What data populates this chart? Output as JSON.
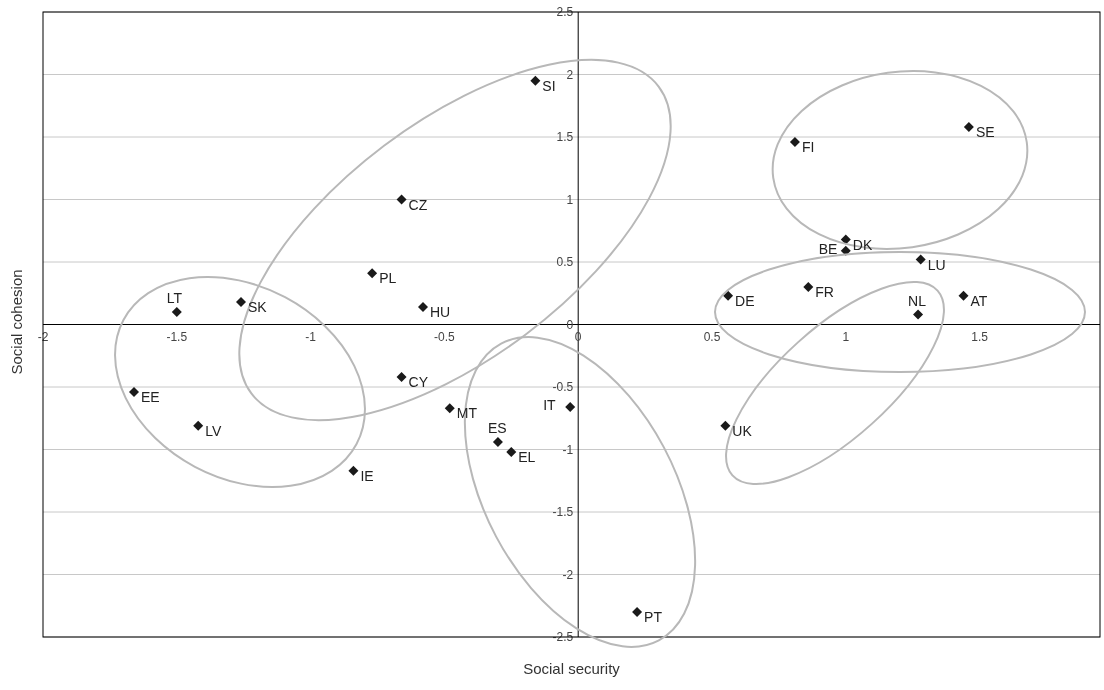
{
  "chart_data": {
    "type": "scatter",
    "xlabel": "Social security",
    "ylabel": "Social cohesion",
    "x": [
      -0.16,
      -0.66,
      -0.77,
      -0.58,
      -1.26,
      -1.5,
      -1.66,
      -1.42,
      -0.84,
      -0.66,
      -0.48,
      -0.3,
      -0.25,
      -0.03,
      0.22,
      0.55,
      0.81,
      1.46,
      1.0,
      1.0,
      1.28,
      0.56,
      0.86,
      1.44,
      1.27
    ],
    "series": [
      {
        "color": "#1a1a1a",
        "values": [
          1.95,
          1.0,
          0.41,
          0.14,
          0.18,
          0.1,
          -0.54,
          -0.81,
          -1.17,
          -0.42,
          -0.67,
          -0.94,
          -1.02,
          -0.66,
          -2.3,
          -0.81,
          1.46,
          1.58,
          0.68,
          0.59,
          0.52,
          0.23,
          0.3,
          0.23,
          0.08
        ]
      }
    ],
    "annotations": [
      {
        "text": "SI",
        "x": -0.16,
        "y": 1.95
      },
      {
        "text": "CZ",
        "x": -0.66,
        "y": 1.0
      },
      {
        "text": "PL",
        "x": -0.77,
        "y": 0.41
      },
      {
        "text": "HU",
        "x": -0.58,
        "y": 0.14
      },
      {
        "text": "SK",
        "x": -1.26,
        "y": 0.18
      },
      {
        "text": "LT",
        "x": -1.5,
        "y": 0.1
      },
      {
        "text": "EE",
        "x": -1.66,
        "y": -0.54
      },
      {
        "text": "LV",
        "x": -1.42,
        "y": -0.81
      },
      {
        "text": "IE",
        "x": -0.84,
        "y": -1.17
      },
      {
        "text": "CY",
        "x": -0.66,
        "y": -0.42
      },
      {
        "text": "MT",
        "x": -0.48,
        "y": -0.67
      },
      {
        "text": "ES",
        "x": -0.3,
        "y": -0.94
      },
      {
        "text": "EL",
        "x": -0.25,
        "y": -1.02
      },
      {
        "text": "IT",
        "x": -0.03,
        "y": -0.66
      },
      {
        "text": "PT",
        "x": 0.22,
        "y": -2.3
      },
      {
        "text": "UK",
        "x": 0.55,
        "y": -0.81
      },
      {
        "text": "FI",
        "x": 0.81,
        "y": 1.46
      },
      {
        "text": "SE",
        "x": 1.46,
        "y": 1.58
      },
      {
        "text": "DK",
        "x": 1.0,
        "y": 0.68
      },
      {
        "text": "BE",
        "x": 1.0,
        "y": 0.59
      },
      {
        "text": "LU",
        "x": 1.28,
        "y": 0.52
      },
      {
        "text": "DE",
        "x": 0.56,
        "y": 0.23
      },
      {
        "text": "FR",
        "x": 0.86,
        "y": 0.3
      },
      {
        "text": "AT",
        "x": 1.44,
        "y": 0.23
      },
      {
        "text": "NL",
        "x": 1.27,
        "y": 0.08
      }
    ],
    "xlim": [
      -2,
      1.95
    ],
    "xticks": [
      -2,
      -1.5,
      -1,
      -0.5,
      0,
      0.5,
      1,
      1.5
    ],
    "ylim": [
      -2.5,
      2.5
    ],
    "yticks": [
      -2.5,
      -2,
      -1.5,
      -1,
      -0.5,
      0,
      0.5,
      1,
      1.5,
      2,
      2.5
    ],
    "grid": "y",
    "marker": "diamond"
  }
}
